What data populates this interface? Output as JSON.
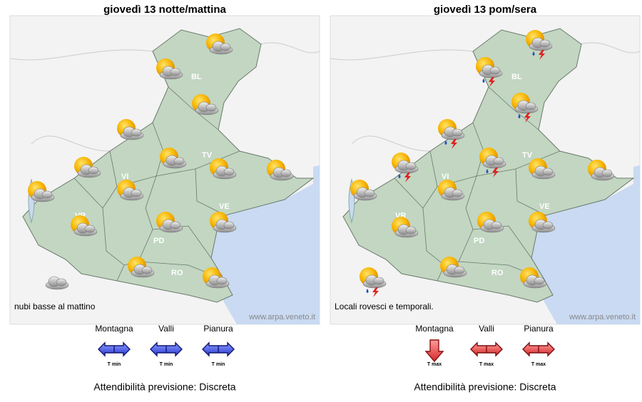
{
  "panels": [
    {
      "title": "giovedì 13 notte/mattina",
      "provinces": [
        "BL",
        "TV",
        "VI",
        "VR",
        "PD",
        "VE",
        "RO"
      ],
      "note": "nubi basse al mattino",
      "credit": "www.arpa.veneto.it",
      "trend": [
        {
          "zone": "Montagna",
          "label": "T min"
        },
        {
          "zone": "Valli",
          "label": "T min"
        },
        {
          "zone": "Pianura",
          "label": "T min"
        }
      ],
      "reliability": "Attendibilità previsione: Discreta"
    },
    {
      "title": "giovedì 13 pom/sera",
      "provinces": [
        "BL",
        "TV",
        "VI",
        "VR",
        "PD",
        "VE",
        "RO"
      ],
      "note": "Locali rovesci e temporali.",
      "credit": "www.arpa.veneto.it",
      "trend": [
        {
          "zone": "Montagna",
          "label": "T max"
        },
        {
          "zone": "Valli",
          "label": "T max"
        },
        {
          "zone": "Pianura",
          "label": "T max"
        }
      ],
      "reliability": "Attendibilità previsione: Discreta"
    }
  ]
}
